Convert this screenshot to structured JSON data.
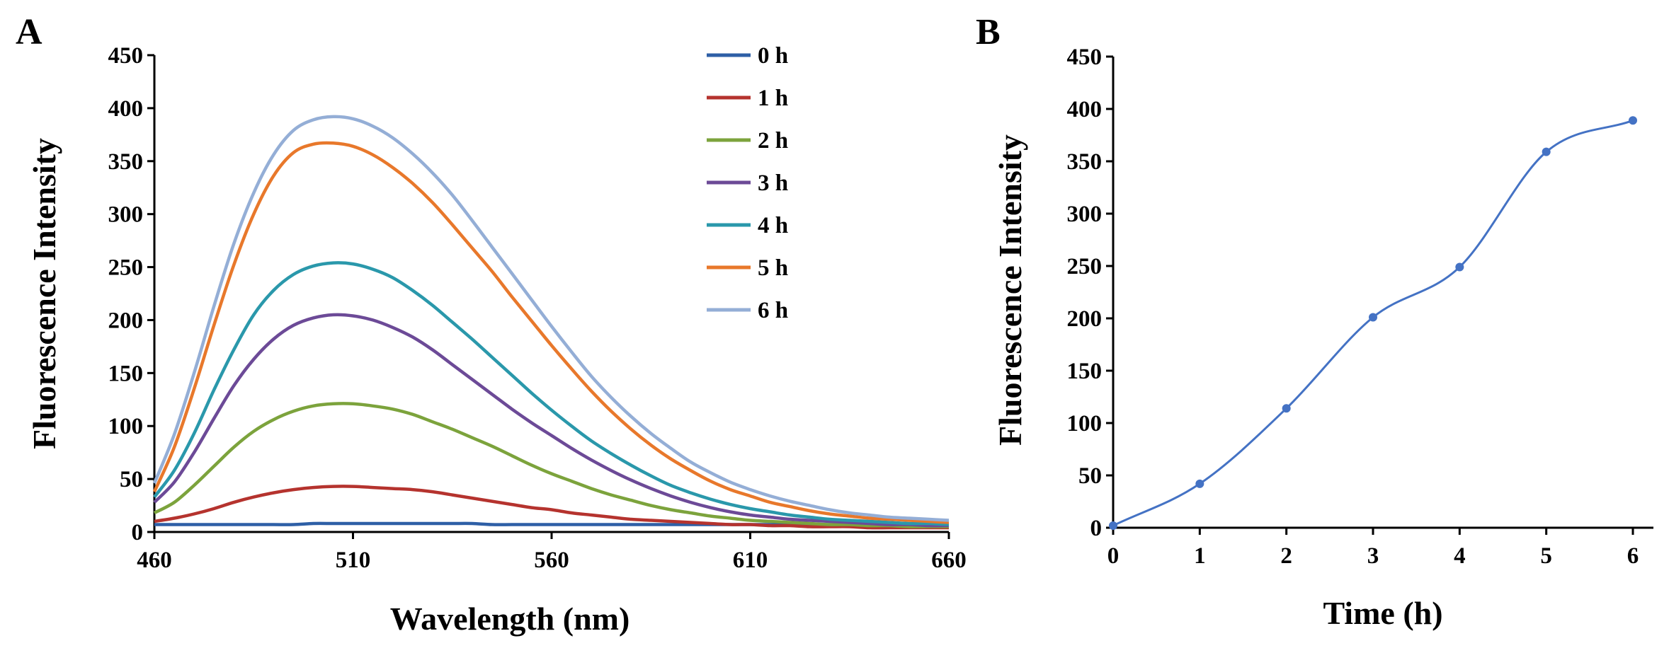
{
  "chart_data": [
    {
      "panel": "A",
      "type": "line",
      "xlabel": "Wavelength (nm)",
      "ylabel": "Fluorescence Intensity",
      "xlim": [
        460,
        660
      ],
      "ylim": [
        0,
        450
      ],
      "xticks": [
        460,
        510,
        560,
        610,
        660
      ],
      "yticks": [
        0,
        50,
        100,
        150,
        200,
        250,
        300,
        350,
        400,
        450
      ],
      "legend_position": "top-right",
      "x": [
        460,
        465,
        470,
        475,
        480,
        485,
        490,
        495,
        500,
        505,
        510,
        515,
        520,
        525,
        530,
        535,
        540,
        545,
        550,
        555,
        560,
        565,
        570,
        575,
        580,
        585,
        590,
        595,
        600,
        605,
        610,
        615,
        620,
        625,
        630,
        635,
        640,
        645,
        650,
        655,
        660
      ],
      "series": [
        {
          "name": "0 h",
          "color": "#2e5fa6",
          "values": [
            7,
            7,
            7,
            7,
            7,
            7,
            7,
            7,
            8,
            8,
            8,
            8,
            8,
            8,
            8,
            8,
            8,
            7,
            7,
            7,
            7,
            7,
            7,
            7,
            7,
            7,
            7,
            7,
            7,
            7,
            7,
            7,
            7,
            7,
            7,
            7,
            7,
            7,
            7,
            7,
            7
          ]
        },
        {
          "name": "1 h",
          "color": "#b5332e",
          "values": [
            10,
            13,
            17,
            22,
            28,
            33,
            37,
            40,
            42,
            43,
            43,
            42,
            41,
            40,
            38,
            35,
            32,
            29,
            26,
            23,
            21,
            18,
            16,
            14,
            12,
            11,
            10,
            9,
            8,
            7,
            7,
            6,
            6,
            5,
            5,
            5,
            4,
            4,
            4,
            4,
            4
          ]
        },
        {
          "name": "2 h",
          "color": "#7ca33c",
          "values": [
            18,
            28,
            44,
            62,
            80,
            95,
            106,
            114,
            119,
            121,
            121,
            119,
            116,
            111,
            104,
            97,
            89,
            81,
            72,
            63,
            55,
            48,
            41,
            35,
            30,
            25,
            21,
            18,
            15,
            13,
            11,
            10,
            9,
            8,
            7,
            7,
            6,
            6,
            5,
            5,
            5
          ]
        },
        {
          "name": "3 h",
          "color": "#6c4a97",
          "values": [
            28,
            47,
            75,
            107,
            138,
            163,
            182,
            195,
            202,
            205,
            204,
            200,
            193,
            184,
            172,
            158,
            144,
            130,
            116,
            103,
            91,
            79,
            68,
            58,
            49,
            41,
            34,
            28,
            23,
            19,
            16,
            14,
            12,
            11,
            10,
            9,
            8,
            7,
            7,
            6,
            6
          ]
        },
        {
          "name": "4 h",
          "color": "#2a98ab",
          "values": [
            33,
            58,
            93,
            134,
            172,
            205,
            228,
            243,
            251,
            254,
            253,
            248,
            240,
            228,
            214,
            198,
            182,
            165,
            148,
            131,
            115,
            100,
            86,
            74,
            63,
            53,
            44,
            37,
            31,
            26,
            22,
            19,
            16,
            14,
            12,
            11,
            10,
            9,
            8,
            8,
            7
          ]
        },
        {
          "name": "5 h",
          "color": "#e8782b",
          "values": [
            38,
            80,
            135,
            195,
            252,
            300,
            336,
            358,
            366,
            367,
            364,
            356,
            344,
            329,
            311,
            290,
            268,
            246,
            222,
            199,
            176,
            154,
            133,
            114,
            97,
            82,
            69,
            58,
            48,
            40,
            34,
            28,
            24,
            20,
            17,
            15,
            13,
            12,
            11,
            10,
            9
          ]
        },
        {
          "name": "6 h",
          "color": "#94aed6",
          "values": [
            46,
            92,
            150,
            213,
            272,
            320,
            356,
            379,
            389,
            392,
            390,
            383,
            372,
            357,
            339,
            318,
            294,
            269,
            244,
            219,
            194,
            170,
            147,
            127,
            109,
            93,
            79,
            66,
            56,
            47,
            40,
            34,
            29,
            25,
            21,
            18,
            16,
            14,
            13,
            12,
            11
          ]
        }
      ]
    },
    {
      "panel": "B",
      "type": "line",
      "xlabel": "Time (h)",
      "ylabel": "Fluorescence Intensity",
      "xlim": [
        0,
        6
      ],
      "ylim": [
        0,
        450
      ],
      "xticks": [
        0,
        1,
        2,
        3,
        4,
        5,
        6
      ],
      "yticks": [
        0,
        50,
        100,
        150,
        200,
        250,
        300,
        350,
        400,
        450
      ],
      "series": [
        {
          "name": "Fluorescence Intensity",
          "color": "#4472c4",
          "x": [
            0,
            1,
            2,
            3,
            4,
            5,
            6
          ],
          "values": [
            2,
            42,
            114,
            201,
            249,
            359,
            389
          ]
        }
      ]
    }
  ]
}
